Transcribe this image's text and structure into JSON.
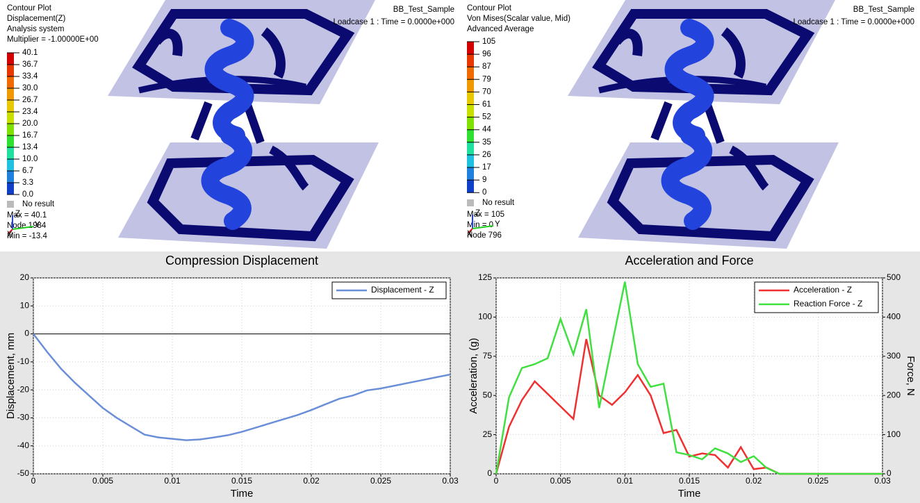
{
  "panels": [
    {
      "lines": [
        "Contour Plot",
        "Displacement(Z)",
        "Analysis system",
        "Multiplier = -1.00000E+00"
      ],
      "legend_labels": [
        "40.1",
        "36.7",
        "33.4",
        "30.0",
        "26.7",
        "23.4",
        "20.0",
        "16.7",
        "13.4",
        "10.0",
        "6.7",
        "3.3",
        "0.0"
      ],
      "no_result": "No result",
      "stats": [
        "Max = 40.1",
        "Node 1984",
        "Min = -13.4"
      ],
      "model": "BB_Test_Sample",
      "loadcase": "Loadcase 1 : Time = 0.0000e+000",
      "axes": [
        "Z",
        "Y",
        "X"
      ]
    },
    {
      "lines": [
        "Contour Plot",
        "Von Mises(Scalar value, Mid)",
        "Advanced Average"
      ],
      "legend_labels": [
        "105",
        "96",
        "87",
        "79",
        "70",
        "61",
        "52",
        "44",
        "35",
        "26",
        "17",
        "9",
        "0"
      ],
      "no_result": "No result",
      "stats": [
        "Max = 105",
        "Min = 0",
        "Node 796"
      ],
      "model": "BB_Test_Sample",
      "loadcase": "Loadcase 1 : Time = 0.0000e+000",
      "axes": [
        "Z",
        "Y",
        "X"
      ]
    }
  ],
  "chart_data": [
    {
      "type": "line",
      "title": "Compression Displacement",
      "x_label": "Time",
      "y_label": "Displacement, mm",
      "x": [
        0,
        0.001,
        0.002,
        0.003,
        0.004,
        0.005,
        0.006,
        0.007,
        0.008,
        0.009,
        0.01,
        0.011,
        0.012,
        0.013,
        0.014,
        0.015,
        0.016,
        0.017,
        0.018,
        0.019,
        0.02,
        0.021,
        0.022,
        0.023,
        0.024,
        0.025,
        0.026,
        0.027,
        0.028,
        0.029,
        0.03
      ],
      "series": [
        {
          "name": "Displacement - Z",
          "color": "#6a8fd8",
          "values": [
            0,
            -6.5,
            -12.5,
            -17.5,
            -22,
            -26.5,
            -30,
            -33,
            -36,
            -37,
            -37.5,
            -38,
            -37.7,
            -37,
            -36.2,
            -35,
            -33.5,
            -32,
            -30.5,
            -29,
            -27.2,
            -25.2,
            -23.2,
            -22,
            -20.2,
            -19.5,
            -18.5,
            -17.5,
            -16.5,
            -15.5,
            -14.5
          ]
        }
      ],
      "xlim": [
        0,
        0.03
      ],
      "xticks": [
        0,
        0.005,
        0.01,
        0.015,
        0.02,
        0.025,
        0.03
      ],
      "ylim": [
        -50,
        20
      ],
      "yticks": [
        -50,
        -40,
        -30,
        -20,
        -10,
        0,
        10,
        20
      ],
      "grid": true,
      "zero_line": true,
      "legend": "upper right"
    },
    {
      "type": "line",
      "title": "Acceleration and Force",
      "x_label": "Time",
      "y_label": "Acceleration, (g)",
      "y2_label": "Force, N",
      "x": [
        0,
        0.001,
        0.002,
        0.003,
        0.004,
        0.005,
        0.006,
        0.007,
        0.008,
        0.009,
        0.01,
        0.011,
        0.012,
        0.013,
        0.014,
        0.015,
        0.016,
        0.017,
        0.018,
        0.019,
        0.02,
        0.021,
        0.022,
        0.023,
        0.024,
        0.025,
        0.026,
        0.027,
        0.028,
        0.029,
        0.03
      ],
      "series": [
        {
          "name": "Acceleration - Z",
          "color": "#f03030",
          "values": [
            0,
            30,
            47,
            59,
            51,
            43,
            35,
            86,
            50,
            44,
            52,
            63,
            50,
            26,
            28,
            11,
            13,
            12,
            4,
            17,
            3,
            4,
            0,
            0,
            0,
            0,
            0,
            0,
            0,
            0,
            0
          ]
        },
        {
          "name": "Reaction Force - Z",
          "color": "#40e040",
          "axis": "y2",
          "values": [
            0,
            195,
            270,
            280,
            295,
            395,
            305,
            420,
            168,
            330,
            490,
            280,
            222,
            230,
            55,
            48,
            37,
            65,
            52,
            30,
            45,
            15,
            0,
            0,
            0,
            0,
            0,
            0,
            0,
            0,
            0
          ]
        }
      ],
      "xlim": [
        0,
        0.03
      ],
      "xticks": [
        0,
        0.005,
        0.01,
        0.015,
        0.02,
        0.025,
        0.03
      ],
      "ylim": [
        0,
        125
      ],
      "yticks": [
        0,
        25,
        50,
        75,
        100,
        125
      ],
      "y2lim": [
        0,
        500
      ],
      "y2ticks": [
        0,
        100,
        200,
        300,
        400,
        500
      ],
      "grid": true,
      "legend": "upper right"
    }
  ]
}
